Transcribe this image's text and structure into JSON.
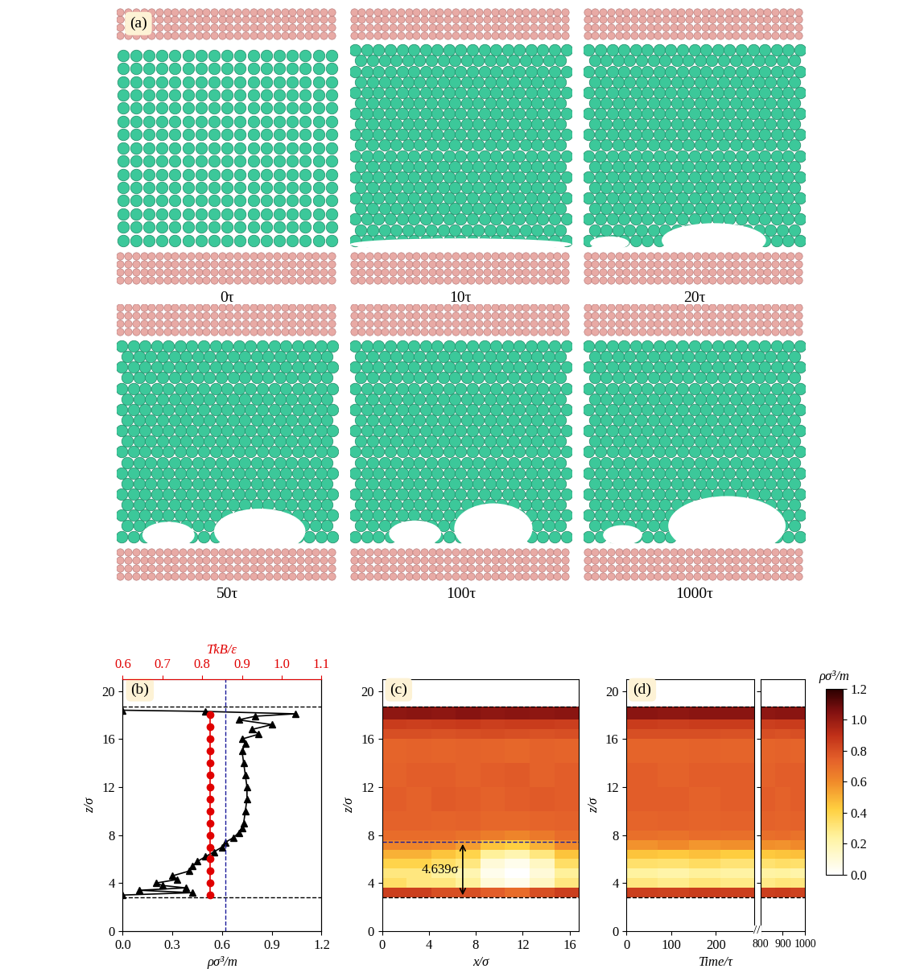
{
  "snapshots": {
    "label": "(a)",
    "frames": [
      "0τ",
      "10τ",
      "20τ",
      "50τ",
      "100τ",
      "1000τ"
    ]
  },
  "chart_data": [
    {
      "type": "line",
      "label": "(b)",
      "xlabel": "ρσ³/m",
      "x2label": "TkB/ε",
      "ylabel": "z/σ",
      "xlim": [
        0.0,
        1.2
      ],
      "xticks": [
        0.0,
        0.3,
        0.6,
        0.9,
        1.2
      ],
      "x2lim": [
        0.6,
        1.1
      ],
      "x2ticks": [
        0.6,
        0.7,
        0.8,
        0.9,
        1.0,
        1.1
      ],
      "ylim": [
        0,
        21
      ],
      "yticks": [
        0,
        4,
        8,
        12,
        16,
        20
      ],
      "hlines": [
        2.8,
        18.7
      ],
      "vlines": [
        0.62
      ],
      "series": [
        {
          "color": "#000000",
          "marker": "triangle",
          "axis": "x",
          "x": [
            0.0,
            0.42,
            0.1,
            0.38,
            0.24,
            0.2,
            0.33,
            0.3,
            0.4,
            0.42,
            0.45,
            0.5,
            0.55,
            0.6,
            0.62,
            0.67,
            0.7,
            0.72,
            0.73,
            0.74,
            0.75,
            0.75,
            0.74,
            0.73,
            0.72,
            0.74,
            0.72,
            0.82,
            0.78,
            0.9,
            0.7,
            0.8,
            1.04,
            0.5,
            0.0
          ],
          "y": [
            3.0,
            3.2,
            3.4,
            3.6,
            3.8,
            4.0,
            4.3,
            4.6,
            5.0,
            5.4,
            5.8,
            6.2,
            6.6,
            7.0,
            7.4,
            7.8,
            8.2,
            8.6,
            9.0,
            10.0,
            11.0,
            12.0,
            13.0,
            14.0,
            15.0,
            15.6,
            16.0,
            16.4,
            16.8,
            17.2,
            17.6,
            17.9,
            18.1,
            18.3,
            18.4
          ]
        },
        {
          "color": "#e00000",
          "marker": "circle",
          "axis": "x2",
          "x": [
            0.82,
            0.82,
            0.82,
            0.82,
            0.82,
            0.82,
            0.82,
            0.82,
            0.82,
            0.82,
            0.82,
            0.82,
            0.82,
            0.82,
            0.82,
            0.82
          ],
          "y": [
            3.0,
            4.0,
            5.0,
            6.0,
            7.0,
            8.0,
            9.0,
            10.0,
            11.0,
            12.0,
            13.0,
            14.0,
            15.0,
            16.0,
            17.0,
            18.0
          ]
        }
      ]
    },
    {
      "type": "heatmap",
      "label": "(c)",
      "xlabel": "x/σ",
      "ylabel": "z/σ",
      "xlim": [
        0,
        16.8
      ],
      "xticks": [
        0,
        4,
        8,
        12,
        16
      ],
      "ylim": [
        0,
        21
      ],
      "yticks": [
        0,
        4,
        8,
        12,
        16,
        20
      ],
      "hlines": [
        2.8,
        18.7
      ],
      "gap_line": 7.44,
      "annotation": {
        "text": "4.639σ",
        "from": 2.8,
        "to": 7.44
      },
      "x_edges": [
        0,
        2.1,
        4.2,
        6.3,
        8.4,
        10.5,
        12.6,
        14.7,
        16.8
      ],
      "z_edges": [
        2.8,
        3.6,
        4.4,
        5.2,
        6.0,
        6.8,
        7.6,
        8.4,
        10.0,
        12.0,
        14.0,
        16.0,
        16.8,
        17.6,
        18.7
      ],
      "cells": [
        [
          0.85,
          0.85,
          0.8,
          0.8,
          0.75,
          0.7,
          0.8,
          0.85
        ],
        [
          0.35,
          0.3,
          0.3,
          0.25,
          0.1,
          0.05,
          0.15,
          0.3
        ],
        [
          0.3,
          0.3,
          0.25,
          0.2,
          0.05,
          0.0,
          0.1,
          0.25
        ],
        [
          0.4,
          0.4,
          0.35,
          0.3,
          0.1,
          0.05,
          0.15,
          0.35
        ],
        [
          0.5,
          0.5,
          0.45,
          0.4,
          0.25,
          0.2,
          0.3,
          0.45
        ],
        [
          0.62,
          0.62,
          0.6,
          0.55,
          0.45,
          0.42,
          0.5,
          0.6
        ],
        [
          0.7,
          0.7,
          0.7,
          0.68,
          0.65,
          0.62,
          0.66,
          0.7
        ],
        [
          0.74,
          0.74,
          0.73,
          0.74,
          0.72,
          0.72,
          0.73,
          0.74
        ],
        [
          0.75,
          0.74,
          0.76,
          0.75,
          0.74,
          0.75,
          0.76,
          0.75
        ],
        [
          0.74,
          0.75,
          0.75,
          0.74,
          0.75,
          0.76,
          0.74,
          0.75
        ],
        [
          0.73,
          0.74,
          0.73,
          0.74,
          0.73,
          0.72,
          0.74,
          0.73
        ],
        [
          0.8,
          0.8,
          0.79,
          0.8,
          0.81,
          0.8,
          0.79,
          0.8
        ],
        [
          0.86,
          0.85,
          0.86,
          0.87,
          0.85,
          0.86,
          0.86,
          0.85
        ],
        [
          1.02,
          1.03,
          1.02,
          1.04,
          1.02,
          1.03,
          1.02,
          1.03
        ]
      ]
    },
    {
      "type": "heatmap",
      "label": "(d)",
      "xlabel": "Time/τ",
      "ylabel": "z/σ",
      "break_mark": "//",
      "ylim": [
        0,
        21
      ],
      "yticks": [
        0,
        4,
        8,
        12,
        16,
        20
      ],
      "hlines": [
        2.8,
        18.7
      ],
      "z_edges": [
        2.8,
        3.6,
        4.4,
        5.2,
        6.0,
        6.8,
        7.6,
        8.4,
        10.0,
        12.0,
        14.0,
        16.0,
        16.8,
        17.6,
        18.7
      ],
      "colorbar": {
        "label": "ρσ³/m",
        "range": [
          0.0,
          1.2
        ],
        "ticks": [
          0.0,
          0.2,
          0.4,
          0.6,
          0.8,
          1.0,
          1.2
        ]
      },
      "segments": [
        {
          "xlim": [
            0,
            285
          ],
          "xticks": [
            0,
            100,
            200
          ],
          "t_edges": [
            0,
            70,
            140,
            210,
            285
          ],
          "cells": [
            [
              0.85,
              0.84,
              0.86,
              0.85
            ],
            [
              0.3,
              0.28,
              0.31,
              0.29
            ],
            [
              0.24,
              0.22,
              0.25,
              0.23
            ],
            [
              0.34,
              0.33,
              0.36,
              0.32
            ],
            [
              0.45,
              0.44,
              0.46,
              0.43
            ],
            [
              0.58,
              0.6,
              0.57,
              0.59
            ],
            [
              0.69,
              0.68,
              0.7,
              0.69
            ],
            [
              0.73,
              0.74,
              0.73,
              0.74
            ],
            [
              0.75,
              0.75,
              0.74,
              0.75
            ],
            [
              0.75,
              0.74,
              0.75,
              0.75
            ],
            [
              0.73,
              0.73,
              0.74,
              0.73
            ],
            [
              0.8,
              0.8,
              0.8,
              0.79
            ],
            [
              0.86,
              0.85,
              0.86,
              0.86
            ],
            [
              1.03,
              1.02,
              1.03,
              1.03
            ]
          ]
        },
        {
          "xlim": [
            800,
            1000
          ],
          "xticks": [
            800,
            900,
            1000
          ],
          "t_edges": [
            800,
            867,
            933,
            1000
          ],
          "cells": [
            [
              0.85,
              0.86,
              0.84
            ],
            [
              0.29,
              0.31,
              0.3
            ],
            [
              0.23,
              0.24,
              0.22
            ],
            [
              0.33,
              0.35,
              0.34
            ],
            [
              0.44,
              0.45,
              0.46
            ],
            [
              0.59,
              0.58,
              0.6
            ],
            [
              0.69,
              0.7,
              0.68
            ],
            [
              0.74,
              0.73,
              0.74
            ],
            [
              0.75,
              0.74,
              0.75
            ],
            [
              0.74,
              0.75,
              0.75
            ],
            [
              0.73,
              0.74,
              0.73
            ],
            [
              0.8,
              0.79,
              0.8
            ],
            [
              0.85,
              0.86,
              0.86
            ],
            [
              1.02,
              1.03,
              1.03
            ]
          ]
        }
      ]
    }
  ]
}
